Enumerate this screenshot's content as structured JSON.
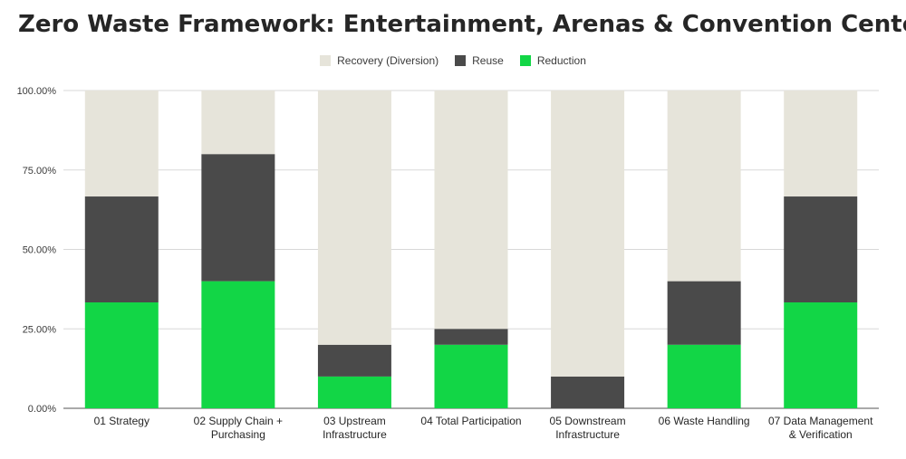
{
  "title": "Zero Waste Framework: Entertainment, Arenas & Convention Centers",
  "colors": {
    "recovery": "#e6e4da",
    "reuse": "#4a4a4a",
    "reduction": "#12d646",
    "grid": "#d8d8d8",
    "axis": "#555555"
  },
  "chart_data": {
    "type": "bar",
    "stacked": true,
    "title": "Zero Waste Framework: Entertainment, Arenas & Convention Centers",
    "categories": [
      [
        "01 Strategy"
      ],
      [
        "02 Supply Chain +",
        "Purchasing"
      ],
      [
        "03 Upstream",
        "Infrastructure"
      ],
      [
        "04 Total Participation"
      ],
      [
        "05 Downstream",
        "Infrastructure"
      ],
      [
        "06 Waste Handling"
      ],
      [
        "07 Data Management",
        "& Verification"
      ]
    ],
    "series": [
      {
        "name": "Reduction",
        "color": "#12d646",
        "values": [
          33.33,
          40,
          10,
          20,
          0,
          20,
          33.33
        ]
      },
      {
        "name": "Reuse",
        "color": "#4a4a4a",
        "values": [
          33.33,
          40,
          10,
          5,
          10,
          20,
          33.33
        ]
      },
      {
        "name": "Recovery (Diversion)",
        "color": "#e6e4da",
        "values": [
          33.34,
          20,
          80,
          75,
          90,
          60,
          33.34
        ]
      }
    ],
    "legend_order": [
      "Recovery (Diversion)",
      "Reuse",
      "Reduction"
    ],
    "yticks": [
      "0.00%",
      "25.00%",
      "50.00%",
      "75.00%",
      "100.00%"
    ],
    "ylim": [
      0,
      100
    ],
    "grid": true,
    "legend_position": "top"
  }
}
